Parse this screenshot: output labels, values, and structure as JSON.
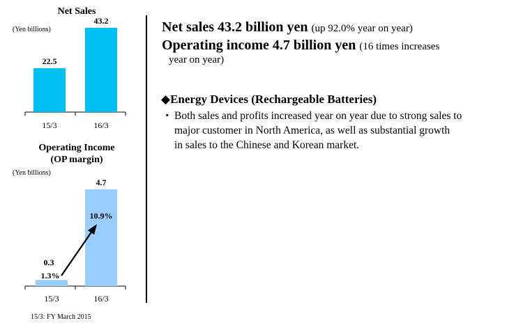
{
  "chart_data": [
    {
      "type": "bar",
      "title": "Net Sales",
      "unit_label": "(Yen billions)",
      "categories": [
        "15/3",
        "16/3"
      ],
      "values": [
        22.5,
        43.2
      ],
      "value_labels": [
        "22.5",
        "43.2"
      ],
      "bar_color": "#00c0f3",
      "ylim": [
        0,
        46
      ]
    },
    {
      "type": "bar",
      "title": "Operating Income",
      "subtitle": "(OP margin)",
      "unit_label": "(Yen billions)",
      "categories": [
        "15/3",
        "16/3"
      ],
      "values": [
        0.3,
        4.7
      ],
      "value_labels": [
        "0.3",
        "4.7"
      ],
      "margins": [
        "1.3%",
        "10.9%"
      ],
      "bar_color": "#99ccff",
      "ylim": [
        0,
        4.7
      ]
    }
  ],
  "footnote": "15/3: FY March 2015",
  "headline": {
    "net_sales": "Net sales 43.2 billion yen",
    "net_sales_note": "(up 92.0% year on year)",
    "op_income": "Operating income 4.7 billion yen",
    "op_income_note": "(16 times increases",
    "op_income_note_cont": "year on year)"
  },
  "section": {
    "title": "◆Energy Devices (Rechargeable Batteries)",
    "bullet_marker": "・",
    "lines": [
      "Both sales and profits increased year on year due to strong sales to",
      "major customer in North America, as well as substantial growth",
      "in sales to the Chinese and Korean market."
    ]
  }
}
